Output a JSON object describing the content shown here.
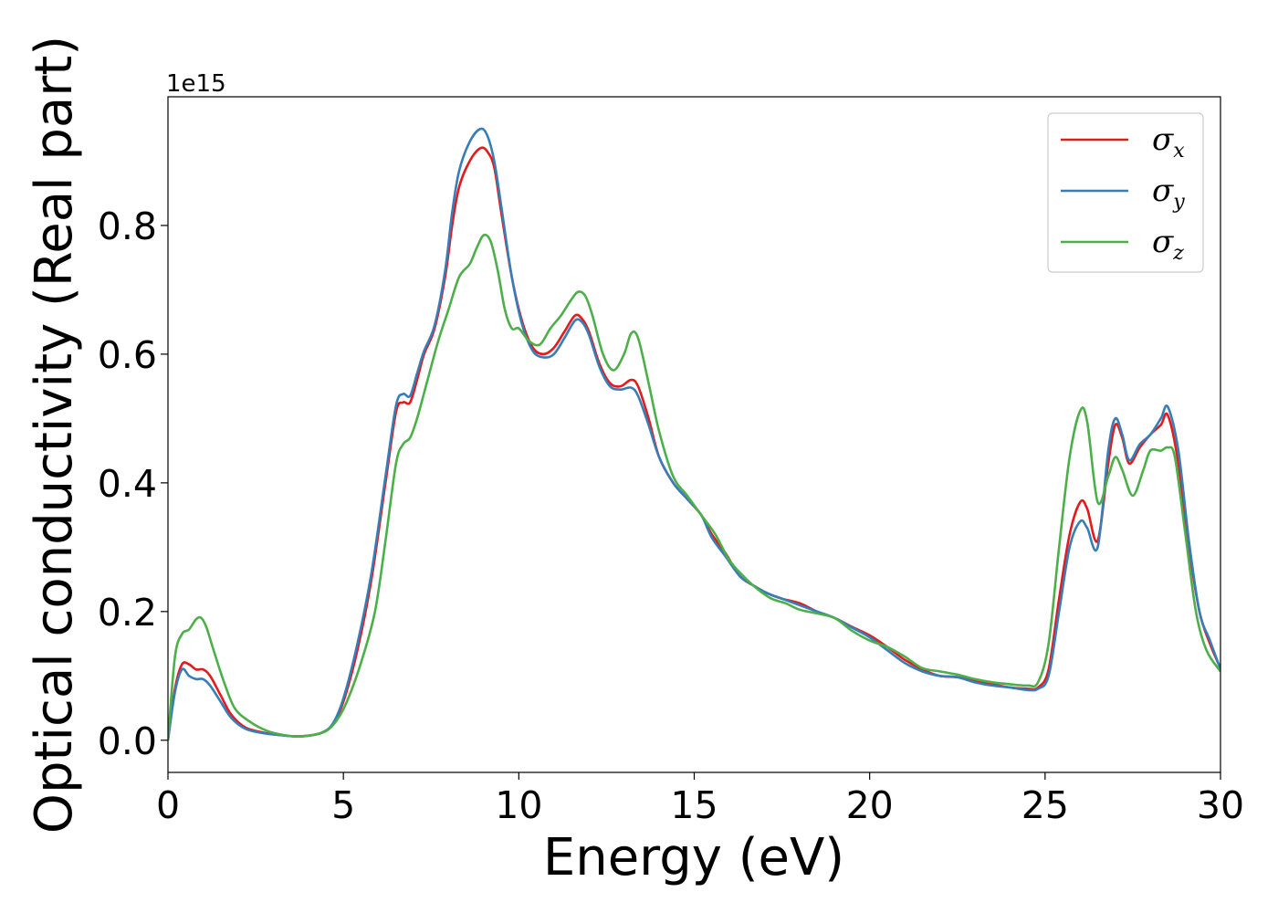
{
  "chart_data": {
    "type": "line",
    "xlabel": "Energy (eV)",
    "ylabel": "Optical conductivity (Real part)",
    "y_offset_text": "1e15",
    "xlim": [
      0,
      30
    ],
    "ylim": [
      -0.05,
      1.0
    ],
    "x_ticks": [
      0,
      5,
      10,
      15,
      20,
      25,
      30
    ],
    "x_tick_labels": [
      "0",
      "5",
      "10",
      "15",
      "20",
      "25",
      "30"
    ],
    "y_ticks": [
      0.0,
      0.2,
      0.4,
      0.6,
      0.8
    ],
    "y_tick_labels": [
      "0.0",
      "0.2",
      "0.4",
      "0.6",
      "0.8"
    ],
    "grid": false,
    "legend_position": "top-right",
    "series": [
      {
        "name": "σx",
        "base": "σ",
        "sub": "x",
        "color": "#e41a1c",
        "points": [
          [
            0,
            0
          ],
          [
            0.2,
            0.08
          ],
          [
            0.4,
            0.118
          ],
          [
            0.6,
            0.118
          ],
          [
            0.8,
            0.11
          ],
          [
            1.0,
            0.11
          ],
          [
            1.2,
            0.1
          ],
          [
            1.5,
            0.07
          ],
          [
            1.8,
            0.04
          ],
          [
            2.2,
            0.02
          ],
          [
            2.7,
            0.012
          ],
          [
            3.2,
            0.008
          ],
          [
            3.6,
            0.006
          ],
          [
            4.0,
            0.007
          ],
          [
            4.4,
            0.012
          ],
          [
            4.7,
            0.025
          ],
          [
            5.0,
            0.06
          ],
          [
            5.4,
            0.14
          ],
          [
            5.8,
            0.25
          ],
          [
            6.2,
            0.4
          ],
          [
            6.5,
            0.51
          ],
          [
            6.7,
            0.525
          ],
          [
            6.9,
            0.525
          ],
          [
            7.1,
            0.56
          ],
          [
            7.3,
            0.6
          ],
          [
            7.6,
            0.64
          ],
          [
            7.9,
            0.72
          ],
          [
            8.1,
            0.8
          ],
          [
            8.3,
            0.86
          ],
          [
            8.6,
            0.9
          ],
          [
            8.9,
            0.92
          ],
          [
            9.1,
            0.915
          ],
          [
            9.3,
            0.89
          ],
          [
            9.5,
            0.82
          ],
          [
            9.8,
            0.72
          ],
          [
            10.1,
            0.65
          ],
          [
            10.4,
            0.61
          ],
          [
            10.7,
            0.6
          ],
          [
            11.0,
            0.61
          ],
          [
            11.3,
            0.635
          ],
          [
            11.6,
            0.66
          ],
          [
            11.8,
            0.655
          ],
          [
            12.0,
            0.635
          ],
          [
            12.3,
            0.585
          ],
          [
            12.6,
            0.555
          ],
          [
            12.9,
            0.55
          ],
          [
            13.2,
            0.56
          ],
          [
            13.4,
            0.55
          ],
          [
            13.7,
            0.5
          ],
          [
            14.0,
            0.44
          ],
          [
            14.4,
            0.4
          ],
          [
            14.8,
            0.375
          ],
          [
            15.2,
            0.35
          ],
          [
            15.5,
            0.32
          ],
          [
            15.9,
            0.29
          ],
          [
            16.3,
            0.255
          ],
          [
            16.7,
            0.24
          ],
          [
            17.1,
            0.228
          ],
          [
            17.5,
            0.22
          ],
          [
            18.0,
            0.213
          ],
          [
            18.5,
            0.2
          ],
          [
            19.0,
            0.19
          ],
          [
            19.5,
            0.176
          ],
          [
            20.0,
            0.163
          ],
          [
            20.5,
            0.145
          ],
          [
            21.0,
            0.125
          ],
          [
            21.5,
            0.11
          ],
          [
            22.0,
            0.1
          ],
          [
            22.5,
            0.098
          ],
          [
            23.0,
            0.092
          ],
          [
            23.5,
            0.087
          ],
          [
            24.0,
            0.082
          ],
          [
            24.5,
            0.08
          ],
          [
            24.8,
            0.082
          ],
          [
            25.1,
            0.11
          ],
          [
            25.4,
            0.22
          ],
          [
            25.7,
            0.32
          ],
          [
            26.0,
            0.37
          ],
          [
            26.2,
            0.36
          ],
          [
            26.5,
            0.31
          ],
          [
            26.8,
            0.43
          ],
          [
            27.0,
            0.49
          ],
          [
            27.2,
            0.47
          ],
          [
            27.4,
            0.43
          ],
          [
            27.7,
            0.455
          ],
          [
            28.0,
            0.475
          ],
          [
            28.3,
            0.49
          ],
          [
            28.5,
            0.505
          ],
          [
            28.8,
            0.43
          ],
          [
            29.1,
            0.3
          ],
          [
            29.4,
            0.2
          ],
          [
            29.7,
            0.15
          ],
          [
            30.0,
            0.112
          ]
        ]
      },
      {
        "name": "σy",
        "base": "σ",
        "sub": "y",
        "color": "#377eb8",
        "points": [
          [
            0,
            0
          ],
          [
            0.2,
            0.075
          ],
          [
            0.4,
            0.11
          ],
          [
            0.6,
            0.1
          ],
          [
            0.8,
            0.095
          ],
          [
            1.0,
            0.095
          ],
          [
            1.2,
            0.085
          ],
          [
            1.5,
            0.06
          ],
          [
            1.8,
            0.035
          ],
          [
            2.2,
            0.018
          ],
          [
            2.7,
            0.011
          ],
          [
            3.2,
            0.008
          ],
          [
            3.6,
            0.006
          ],
          [
            4.0,
            0.007
          ],
          [
            4.4,
            0.012
          ],
          [
            4.7,
            0.026
          ],
          [
            5.0,
            0.065
          ],
          [
            5.4,
            0.15
          ],
          [
            5.8,
            0.26
          ],
          [
            6.2,
            0.41
          ],
          [
            6.5,
            0.52
          ],
          [
            6.7,
            0.538
          ],
          [
            6.9,
            0.535
          ],
          [
            7.1,
            0.57
          ],
          [
            7.3,
            0.605
          ],
          [
            7.6,
            0.645
          ],
          [
            7.9,
            0.73
          ],
          [
            8.1,
            0.82
          ],
          [
            8.3,
            0.885
          ],
          [
            8.6,
            0.93
          ],
          [
            8.9,
            0.95
          ],
          [
            9.1,
            0.94
          ],
          [
            9.3,
            0.9
          ],
          [
            9.5,
            0.83
          ],
          [
            9.8,
            0.72
          ],
          [
            10.1,
            0.645
          ],
          [
            10.4,
            0.605
          ],
          [
            10.7,
            0.595
          ],
          [
            11.0,
            0.6
          ],
          [
            11.3,
            0.625
          ],
          [
            11.6,
            0.652
          ],
          [
            11.8,
            0.65
          ],
          [
            12.0,
            0.63
          ],
          [
            12.3,
            0.58
          ],
          [
            12.6,
            0.55
          ],
          [
            12.9,
            0.545
          ],
          [
            13.2,
            0.548
          ],
          [
            13.4,
            0.535
          ],
          [
            13.7,
            0.49
          ],
          [
            14.0,
            0.44
          ],
          [
            14.4,
            0.4
          ],
          [
            14.8,
            0.375
          ],
          [
            15.2,
            0.35
          ],
          [
            15.5,
            0.315
          ],
          [
            15.9,
            0.285
          ],
          [
            16.3,
            0.255
          ],
          [
            16.7,
            0.24
          ],
          [
            17.1,
            0.228
          ],
          [
            17.5,
            0.22
          ],
          [
            18.0,
            0.21
          ],
          [
            18.5,
            0.2
          ],
          [
            19.0,
            0.19
          ],
          [
            19.5,
            0.175
          ],
          [
            20.0,
            0.16
          ],
          [
            20.5,
            0.14
          ],
          [
            21.0,
            0.12
          ],
          [
            21.5,
            0.107
          ],
          [
            22.0,
            0.1
          ],
          [
            22.5,
            0.098
          ],
          [
            23.0,
            0.09
          ],
          [
            23.5,
            0.085
          ],
          [
            24.0,
            0.082
          ],
          [
            24.5,
            0.078
          ],
          [
            24.8,
            0.08
          ],
          [
            25.1,
            0.1
          ],
          [
            25.4,
            0.2
          ],
          [
            25.7,
            0.3
          ],
          [
            26.0,
            0.34
          ],
          [
            26.2,
            0.33
          ],
          [
            26.5,
            0.3
          ],
          [
            26.8,
            0.45
          ],
          [
            27.0,
            0.5
          ],
          [
            27.2,
            0.475
          ],
          [
            27.4,
            0.435
          ],
          [
            27.7,
            0.46
          ],
          [
            28.0,
            0.475
          ],
          [
            28.3,
            0.5
          ],
          [
            28.5,
            0.518
          ],
          [
            28.8,
            0.45
          ],
          [
            29.1,
            0.31
          ],
          [
            29.4,
            0.2
          ],
          [
            29.7,
            0.155
          ],
          [
            30.0,
            0.11
          ]
        ]
      },
      {
        "name": "σz",
        "base": "σ",
        "sub": "z",
        "color": "#4daf4a",
        "points": [
          [
            0,
            0
          ],
          [
            0.2,
            0.13
          ],
          [
            0.4,
            0.165
          ],
          [
            0.6,
            0.172
          ],
          [
            0.8,
            0.188
          ],
          [
            0.95,
            0.19
          ],
          [
            1.1,
            0.175
          ],
          [
            1.3,
            0.14
          ],
          [
            1.6,
            0.09
          ],
          [
            1.9,
            0.05
          ],
          [
            2.3,
            0.03
          ],
          [
            2.8,
            0.015
          ],
          [
            3.3,
            0.008
          ],
          [
            3.7,
            0.006
          ],
          [
            4.1,
            0.008
          ],
          [
            4.5,
            0.014
          ],
          [
            4.8,
            0.03
          ],
          [
            5.1,
            0.06
          ],
          [
            5.5,
            0.12
          ],
          [
            5.9,
            0.2
          ],
          [
            6.2,
            0.31
          ],
          [
            6.5,
            0.43
          ],
          [
            6.7,
            0.46
          ],
          [
            6.9,
            0.47
          ],
          [
            7.1,
            0.5
          ],
          [
            7.4,
            0.56
          ],
          [
            7.7,
            0.62
          ],
          [
            8.0,
            0.67
          ],
          [
            8.3,
            0.72
          ],
          [
            8.6,
            0.74
          ],
          [
            8.8,
            0.765
          ],
          [
            9.0,
            0.785
          ],
          [
            9.2,
            0.775
          ],
          [
            9.4,
            0.73
          ],
          [
            9.6,
            0.67
          ],
          [
            9.8,
            0.64
          ],
          [
            10.0,
            0.64
          ],
          [
            10.3,
            0.62
          ],
          [
            10.6,
            0.615
          ],
          [
            10.9,
            0.64
          ],
          [
            11.2,
            0.66
          ],
          [
            11.5,
            0.685
          ],
          [
            11.7,
            0.697
          ],
          [
            11.9,
            0.69
          ],
          [
            12.1,
            0.66
          ],
          [
            12.4,
            0.6
          ],
          [
            12.7,
            0.575
          ],
          [
            13.0,
            0.6
          ],
          [
            13.2,
            0.632
          ],
          [
            13.4,
            0.625
          ],
          [
            13.7,
            0.555
          ],
          [
            14.0,
            0.48
          ],
          [
            14.4,
            0.41
          ],
          [
            14.8,
            0.38
          ],
          [
            15.2,
            0.35
          ],
          [
            15.6,
            0.32
          ],
          [
            16.0,
            0.28
          ],
          [
            16.4,
            0.255
          ],
          [
            16.8,
            0.235
          ],
          [
            17.2,
            0.22
          ],
          [
            17.6,
            0.213
          ],
          [
            18.0,
            0.203
          ],
          [
            18.5,
            0.197
          ],
          [
            19.0,
            0.19
          ],
          [
            19.5,
            0.17
          ],
          [
            20.0,
            0.155
          ],
          [
            20.5,
            0.145
          ],
          [
            21.0,
            0.13
          ],
          [
            21.5,
            0.112
          ],
          [
            22.0,
            0.107
          ],
          [
            22.5,
            0.102
          ],
          [
            23.0,
            0.095
          ],
          [
            23.5,
            0.09
          ],
          [
            24.0,
            0.087
          ],
          [
            24.5,
            0.085
          ],
          [
            24.8,
            0.09
          ],
          [
            25.1,
            0.15
          ],
          [
            25.4,
            0.3
          ],
          [
            25.7,
            0.44
          ],
          [
            26.0,
            0.512
          ],
          [
            26.2,
            0.495
          ],
          [
            26.5,
            0.37
          ],
          [
            26.8,
            0.41
          ],
          [
            27.0,
            0.44
          ],
          [
            27.2,
            0.42
          ],
          [
            27.5,
            0.38
          ],
          [
            27.8,
            0.42
          ],
          [
            28.0,
            0.45
          ],
          [
            28.3,
            0.45
          ],
          [
            28.5,
            0.455
          ],
          [
            28.7,
            0.44
          ],
          [
            29.0,
            0.32
          ],
          [
            29.3,
            0.2
          ],
          [
            29.6,
            0.14
          ],
          [
            30.0,
            0.107
          ]
        ]
      }
    ]
  }
}
